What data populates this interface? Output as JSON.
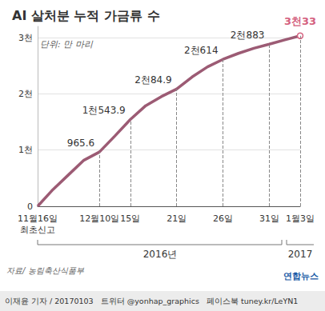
{
  "chart_data": {
    "type": "line",
    "title": "AI 살처분 누적 가금류 수",
    "unit_note": "단위: 만 마리",
    "categories": [
      "11월16일\n최초신고",
      null,
      null,
      null,
      "12월10일",
      null,
      "15일",
      null,
      null,
      "21일",
      null,
      null,
      "26일",
      null,
      null,
      "31일",
      null,
      "1월3일"
    ],
    "values": [
      0,
      300,
      560,
      820,
      965.6,
      1250,
      1543.9,
      1790,
      1950,
      2084.9,
      2300,
      2480,
      2614,
      2720,
      2810,
      2883,
      2960,
      3033
    ],
    "value_labels": [
      null,
      null,
      null,
      null,
      "965.6",
      null,
      "1천543.9",
      null,
      null,
      "2천84.9",
      null,
      null,
      "2천614",
      null,
      null,
      "2천883",
      null,
      "3천33"
    ],
    "color": "#9c5b74",
    "ylim": [
      0,
      3200
    ],
    "yticks": [
      0,
      {
        "value": 1000,
        "label": "1천"
      },
      {
        "value": 2000,
        "label": "2천"
      },
      {
        "value": 3000,
        "label": "3천"
      }
    ],
    "grid": true,
    "data_labels": true,
    "year_labels": [
      "2016년",
      "2017"
    ],
    "source": "자료/ 농림축산식품부",
    "footer": "이재윤 기자 / 20170103   트위터 @yonhap_graphics   페이스북 tuney.kr/LeYN1",
    "logo": "연합뉴스"
  }
}
